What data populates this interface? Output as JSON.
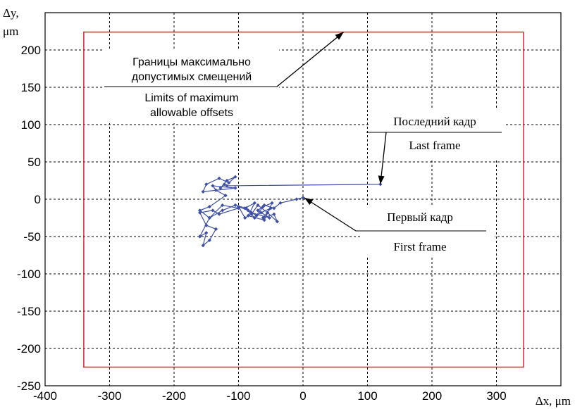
{
  "chart_data": {
    "type": "line",
    "xlabel": "Δx, μm",
    "ylabel_line1": "Δy,",
    "ylabel_line2": "μm",
    "xlim": [
      -400,
      400
    ],
    "ylim": [
      -250,
      250
    ],
    "xticks": [
      -400,
      -300,
      -200,
      -100,
      0,
      100,
      200,
      300
    ],
    "yticks": [
      -250,
      -200,
      -150,
      -100,
      -50,
      0,
      50,
      100,
      150,
      200
    ],
    "grid": true,
    "limits_box": {
      "x": [
        -340,
        342
      ],
      "y": [
        -225,
        224
      ],
      "color": "#e0242b"
    },
    "series_color": "#3d4fa8",
    "series": [
      {
        "x": [
          0,
          -10,
          -35,
          -45,
          -60,
          -70,
          -52,
          -80,
          -90,
          -75,
          -85,
          -60,
          -55,
          -70,
          -80,
          -90,
          -100,
          -85,
          -72,
          -65,
          -50,
          -62,
          -45,
          -40,
          -55,
          -48,
          -62,
          -75,
          -88,
          -105,
          -125,
          -145,
          -160,
          -150,
          -155,
          -145,
          -135,
          -150,
          -160,
          -140,
          -130,
          -100,
          -125,
          -145,
          -160,
          -145,
          -120,
          -135,
          -140,
          -105,
          -155,
          -150,
          -130,
          -115,
          -105,
          -118,
          -128,
          -122,
          -118,
          120
        ],
        "y": [
          2,
          0,
          -5,
          -12,
          -8,
          -15,
          -25,
          -18,
          -12,
          -5,
          -22,
          -28,
          -18,
          -8,
          -20,
          -25,
          -10,
          -15,
          -22,
          -18,
          -12,
          -25,
          -20,
          -30,
          -18,
          -5,
          -10,
          -25,
          -12,
          -8,
          -15,
          -25,
          -50,
          -45,
          -62,
          -55,
          -40,
          -35,
          -18,
          -15,
          -20,
          -12,
          -8,
          -25,
          -15,
          -10,
          5,
          12,
          18,
          15,
          10,
          20,
          28,
          22,
          30,
          25,
          15,
          20,
          18,
          20
        ]
      }
    ],
    "annotations": [
      {
        "lines": [
          "Границы максимально",
          "допустимых смещений"
        ],
        "target": [
          63,
          224
        ]
      },
      {
        "lines": [
          "Limits of maximum",
          "allowable offsets"
        ]
      },
      {
        "lines": [
          "Последний кадр"
        ],
        "target": [
          120,
          20
        ]
      },
      {
        "lines": [
          "Last frame"
        ]
      },
      {
        "lines": [
          "Первый кадр"
        ],
        "target": [
          2,
          2
        ]
      },
      {
        "lines": [
          "First frame"
        ]
      }
    ]
  }
}
